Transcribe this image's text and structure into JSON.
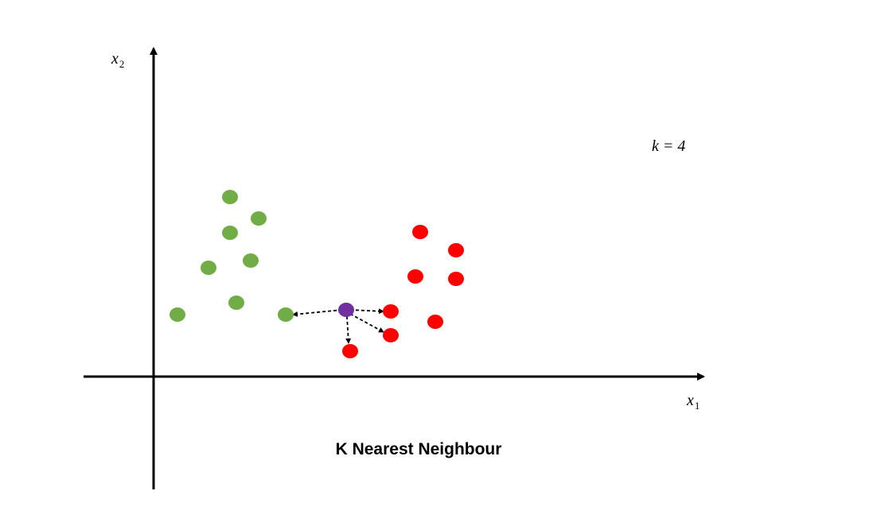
{
  "axes": {
    "y_label": {
      "base": "x",
      "sub": "2"
    },
    "x_label": {
      "base": "x",
      "sub": "1"
    }
  },
  "annotation": "k = 4",
  "title": "K Nearest Neighbour"
}
